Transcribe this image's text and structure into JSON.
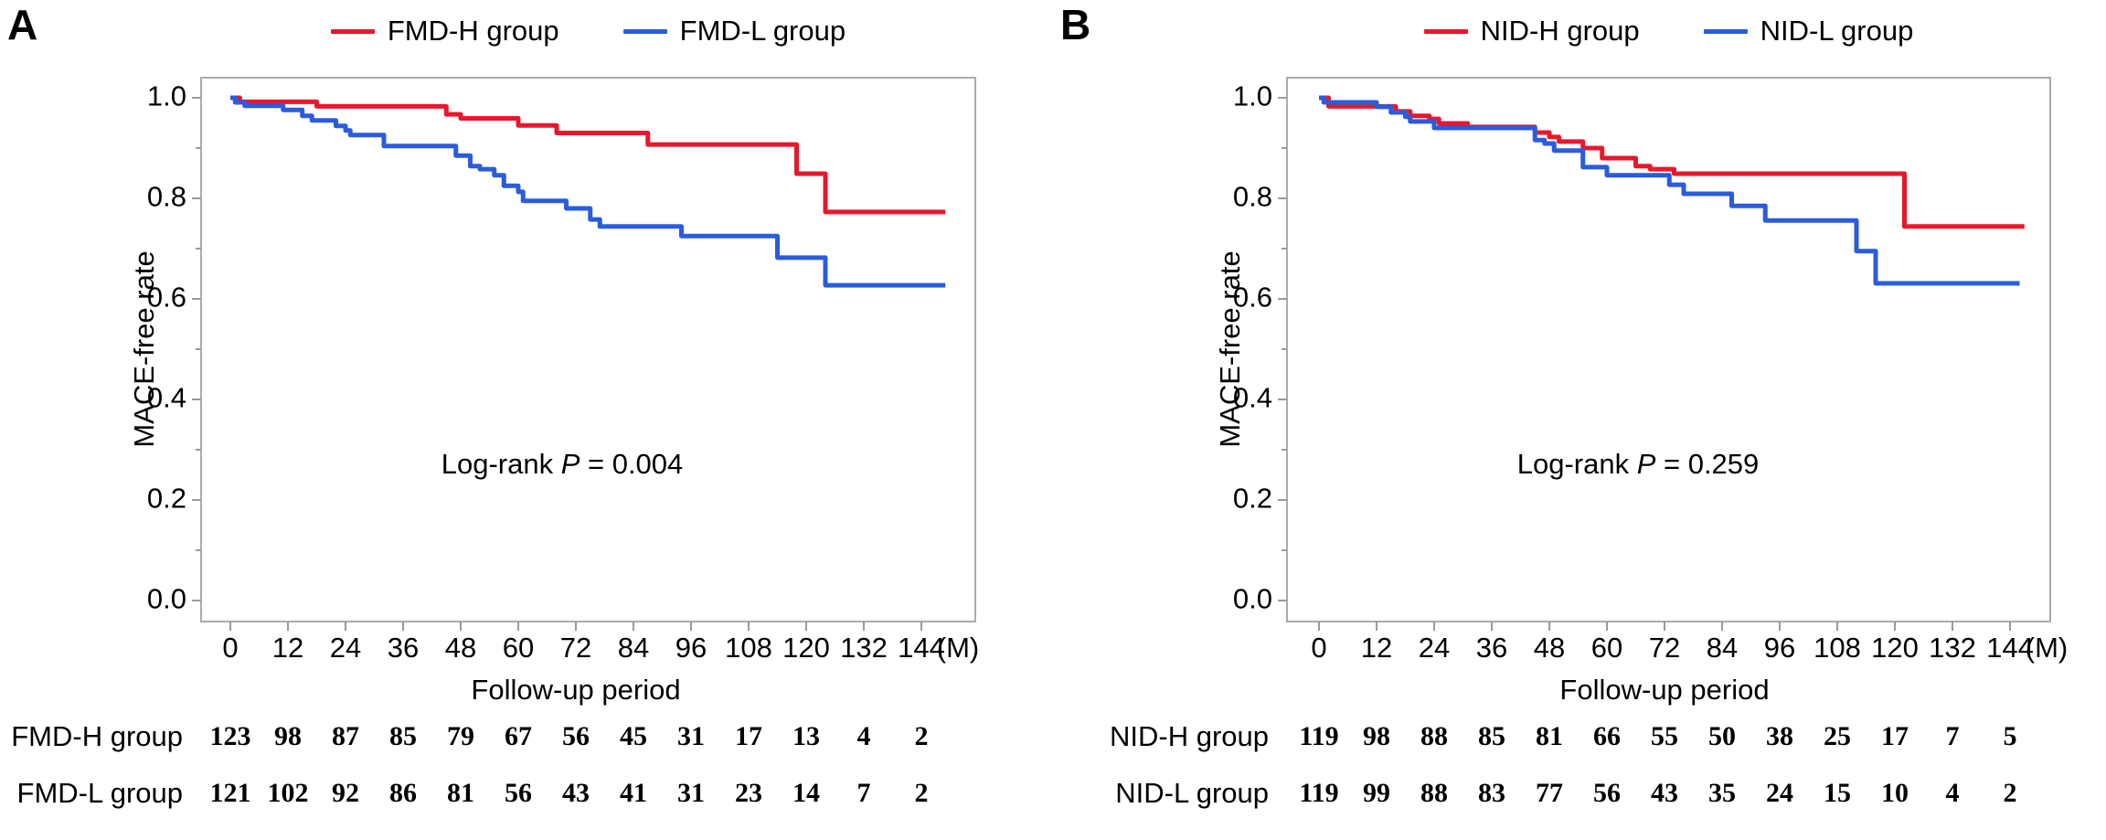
{
  "figure_background": "#ffffff",
  "frame_color": "#ababab",
  "tick_color": "#9a9a9a",
  "chart_data": [
    {
      "type": "line",
      "subtype": "kaplan-meier-step",
      "panel_label": "A",
      "title": "",
      "xlabel": "Follow-up period",
      "x_unit": "(M)",
      "ylabel": "MACE-free rate",
      "xlim": [
        0,
        155
      ],
      "ylim": [
        0.0,
        1.05
      ],
      "x_ticks": [
        0,
        12,
        24,
        36,
        48,
        60,
        72,
        84,
        96,
        108,
        120,
        132,
        144
      ],
      "y_tick_labels": [
        "1.0",
        "0.8",
        "0.6",
        "0.4",
        "0.2",
        "0.0"
      ],
      "y_tick_values": [
        1.0,
        0.8,
        0.6,
        0.4,
        0.2,
        0.0
      ],
      "y_minor_tick_values": [
        0.9,
        0.7,
        0.5,
        0.3,
        0.1
      ],
      "grid": "off",
      "legend_position": "top-center",
      "annotation": {
        "pre": "Log-rank ",
        "var": "P",
        "post": " = 0.004"
      },
      "series": [
        {
          "name": "FMD-H group",
          "color": "#e8182c",
          "steps": [
            [
              0,
              1.0
            ],
            [
              2,
              0.992
            ],
            [
              18,
              0.983
            ],
            [
              45,
              0.967
            ],
            [
              48,
              0.959
            ],
            [
              60,
              0.945
            ],
            [
              68,
              0.93
            ],
            [
              87,
              0.907
            ],
            [
              118,
              0.849
            ],
            [
              124,
              0.773
            ],
            [
              149,
              0.773
            ]
          ]
        },
        {
          "name": "FMD-L group",
          "color": "#2a5cdb",
          "steps": [
            [
              0,
              1.0
            ],
            [
              1,
              0.991
            ],
            [
              3,
              0.984
            ],
            [
              11,
              0.976
            ],
            [
              15,
              0.964
            ],
            [
              17,
              0.955
            ],
            [
              22,
              0.944
            ],
            [
              24,
              0.935
            ],
            [
              25,
              0.926
            ],
            [
              32,
              0.904
            ],
            [
              47,
              0.885
            ],
            [
              50,
              0.864
            ],
            [
              52,
              0.858
            ],
            [
              55,
              0.846
            ],
            [
              57,
              0.825
            ],
            [
              60,
              0.813
            ],
            [
              61,
              0.795
            ],
            [
              70,
              0.78
            ],
            [
              75,
              0.758
            ],
            [
              77,
              0.744
            ],
            [
              94,
              0.725
            ],
            [
              114,
              0.682
            ],
            [
              124,
              0.627
            ],
            [
              149,
              0.627
            ]
          ]
        }
      ],
      "risk_table": {
        "rows": [
          {
            "label": "FMD-H group",
            "counts": [
              123,
              98,
              87,
              85,
              79,
              67,
              56,
              45,
              31,
              17,
              13,
              4,
              2
            ]
          },
          {
            "label": "FMD-L group",
            "counts": [
              121,
              102,
              92,
              86,
              81,
              56,
              43,
              41,
              31,
              23,
              14,
              7,
              2
            ]
          }
        ]
      }
    },
    {
      "type": "line",
      "subtype": "kaplan-meier-step",
      "panel_label": "B",
      "title": "",
      "xlabel": "Follow-up period",
      "x_unit": "(M)",
      "ylabel": "MACE-free rate",
      "xlim": [
        0,
        155
      ],
      "ylim": [
        0.0,
        1.05
      ],
      "x_ticks": [
        0,
        12,
        24,
        36,
        48,
        60,
        72,
        84,
        96,
        108,
        120,
        132,
        144
      ],
      "y_tick_labels": [
        "1.0",
        "0.8",
        "0.6",
        "0.4",
        "0.2",
        "0.0"
      ],
      "y_tick_values": [
        1.0,
        0.8,
        0.6,
        0.4,
        0.2,
        0.0
      ],
      "y_minor_tick_values": [
        0.9,
        0.7,
        0.5,
        0.3,
        0.1
      ],
      "grid": "off",
      "legend_position": "top-center",
      "annotation": {
        "pre": "Log-rank ",
        "var": "P",
        "post": " = 0.259"
      },
      "series": [
        {
          "name": "NID-H group",
          "color": "#e8182c",
          "steps": [
            [
              0,
              1.0
            ],
            [
              2,
              0.983
            ],
            [
              16,
              0.973
            ],
            [
              19,
              0.964
            ],
            [
              23,
              0.958
            ],
            [
              25,
              0.949
            ],
            [
              31,
              0.942
            ],
            [
              45,
              0.931
            ],
            [
              48,
              0.922
            ],
            [
              50,
              0.913
            ],
            [
              55,
              0.9
            ],
            [
              59,
              0.88
            ],
            [
              66,
              0.864
            ],
            [
              69,
              0.858
            ],
            [
              74,
              0.849
            ],
            [
              122,
              0.744
            ],
            [
              147,
              0.744
            ]
          ]
        },
        {
          "name": "NID-L group",
          "color": "#2a5cdb",
          "steps": [
            [
              0,
              1.0
            ],
            [
              1,
              0.991
            ],
            [
              12,
              0.982
            ],
            [
              15,
              0.971
            ],
            [
              18,
              0.962
            ],
            [
              19,
              0.953
            ],
            [
              24,
              0.94
            ],
            [
              45,
              0.916
            ],
            [
              47,
              0.909
            ],
            [
              49,
              0.895
            ],
            [
              55,
              0.862
            ],
            [
              60,
              0.846
            ],
            [
              73,
              0.827
            ],
            [
              76,
              0.809
            ],
            [
              86,
              0.785
            ],
            [
              93,
              0.756
            ],
            [
              112,
              0.695
            ],
            [
              116,
              0.631
            ],
            [
              146,
              0.631
            ]
          ]
        }
      ],
      "risk_table": {
        "rows": [
          {
            "label": "NID-H group",
            "counts": [
              119,
              98,
              88,
              85,
              81,
              66,
              55,
              50,
              38,
              25,
              17,
              7,
              5
            ]
          },
          {
            "label": "NID-L group",
            "counts": [
              119,
              99,
              88,
              83,
              77,
              56,
              43,
              35,
              24,
              15,
              10,
              4,
              2
            ]
          }
        ]
      }
    }
  ]
}
